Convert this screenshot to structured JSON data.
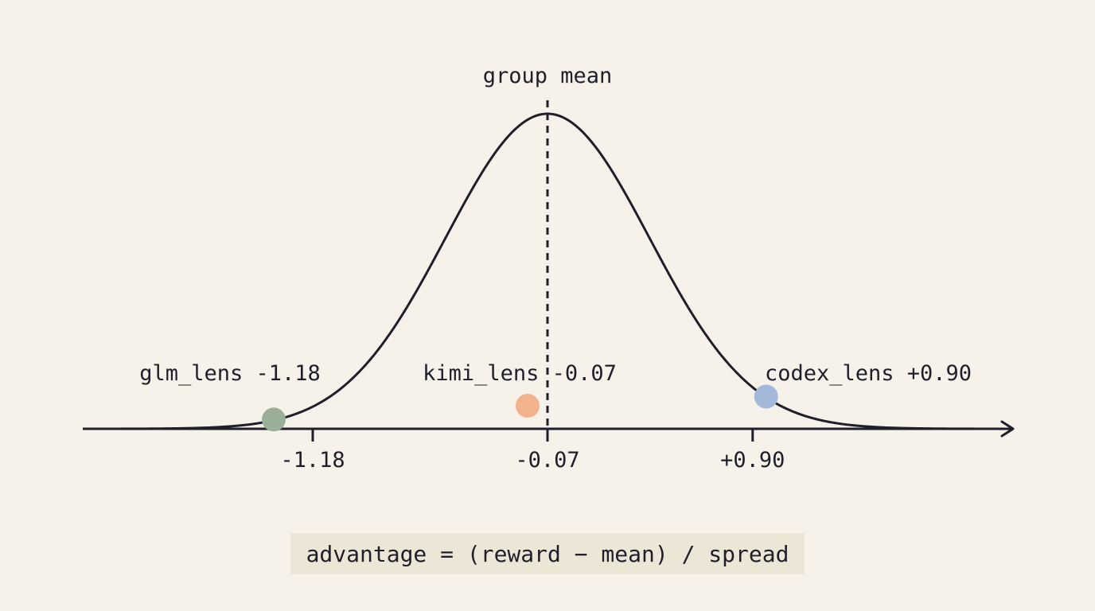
{
  "mean_label": "group mean",
  "formula": "advantage = (reward − mean) / spread",
  "colors": {
    "background": "#f6f2ea",
    "ink": "#1f1e2a",
    "formula_bg": "#ece6d6"
  },
  "chart_data": {
    "type": "scatter",
    "curve": "normal-distribution",
    "mean": -0.07,
    "points": [
      {
        "name": "glm_lens",
        "label": "glm_lens -1.18",
        "x": -1.18,
        "tick": "-1.18",
        "color": "#9aaf97"
      },
      {
        "name": "kimi_lens",
        "label": "kimi_lens -0.07",
        "x": -0.07,
        "tick": "-0.07",
        "color": "#f2b38c"
      },
      {
        "name": "codex_lens",
        "label": "codex_lens +0.90",
        "x": 0.9,
        "tick": "+0.90",
        "color": "#a3b9da"
      }
    ]
  }
}
